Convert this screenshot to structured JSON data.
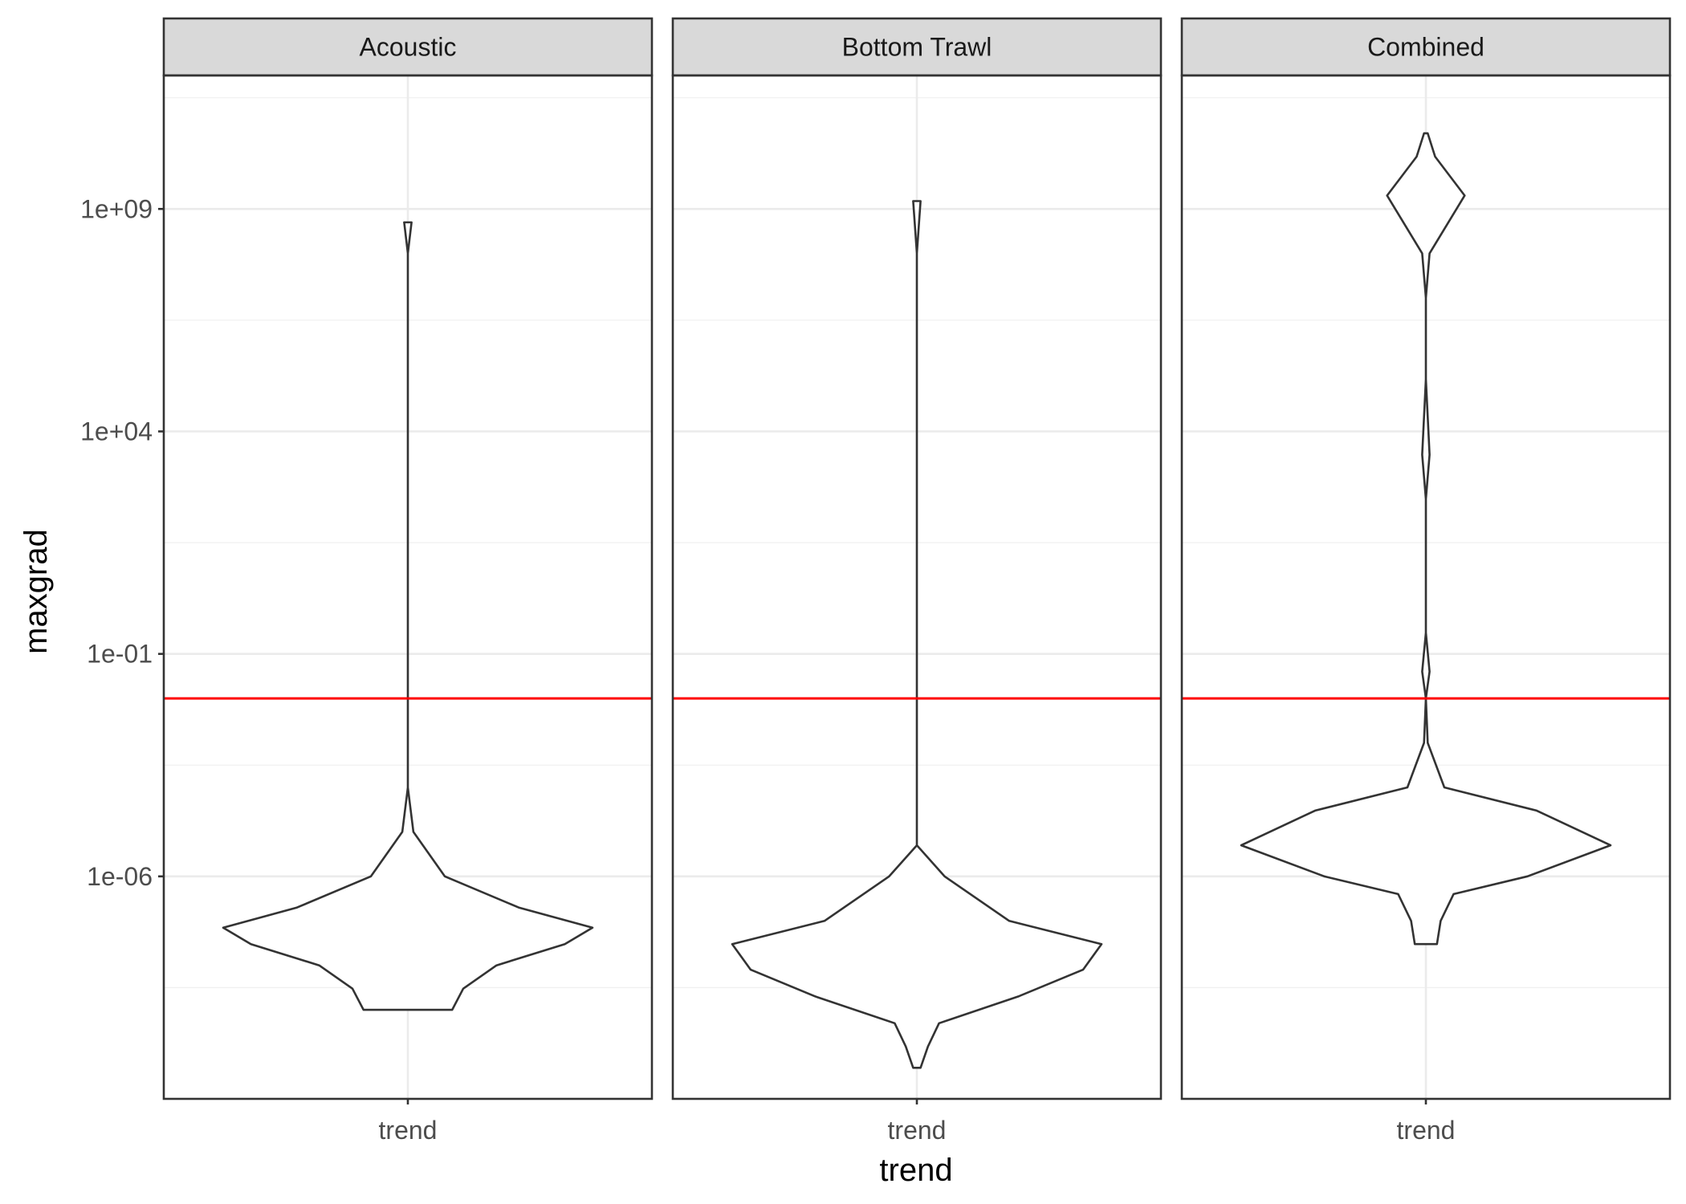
{
  "chart_data": {
    "type": "violin",
    "facets": [
      "Acoustic",
      "Bottom Trawl",
      "Combined"
    ],
    "xlabel": "trend",
    "ylabel": "maxgrad",
    "x_categories": [
      "trend"
    ],
    "y_scale": "log10",
    "y_range": [
      1e-11,
      1000000000000.0
    ],
    "y_ticks": [
      1e-06,
      0.1,
      10000.0,
      1000000000.0
    ],
    "y_tick_labels": [
      "1e-06",
      "1e-01",
      "1e+04",
      "1e+09"
    ],
    "reference_line": {
      "value": 0.01,
      "color": "#ff0000"
    },
    "grid": true,
    "theme": "bw",
    "series": [
      {
        "facet": "Acoustic",
        "x": "trend",
        "min": 1e-09,
        "max": 500000000.0,
        "profile": [
          [
            1e-09,
            0.24
          ],
          [
            3e-09,
            0.3
          ],
          [
            1e-08,
            0.48
          ],
          [
            3e-08,
            0.85
          ],
          [
            7e-08,
            1.0
          ],
          [
            2e-07,
            0.6
          ],
          [
            1e-06,
            0.2
          ],
          [
            1e-05,
            0.03
          ],
          [
            0.0001,
            0.0
          ],
          [
            0.01,
            0.0
          ],
          [
            1000000.0,
            0.0
          ],
          [
            100000000.0,
            0.0
          ],
          [
            500000000.0,
            0.02
          ]
        ]
      },
      {
        "facet": "Bottom Trawl",
        "x": "trend",
        "min": 5e-11,
        "max": 1500000000.0,
        "profile": [
          [
            5e-11,
            0.02
          ],
          [
            1.5e-10,
            0.06
          ],
          [
            5e-10,
            0.12
          ],
          [
            2e-09,
            0.55
          ],
          [
            8e-09,
            0.9
          ],
          [
            3e-08,
            1.0
          ],
          [
            1e-07,
            0.5
          ],
          [
            1e-06,
            0.15
          ],
          [
            5e-06,
            0.0
          ],
          [
            0.0001,
            0.0
          ],
          [
            10000.0,
            0.0
          ],
          [
            100000000.0,
            0.0
          ],
          [
            1500000000.0,
            0.02
          ]
        ]
      },
      {
        "facet": "Combined",
        "x": "trend",
        "min": 3e-08,
        "max": 50000000000.0,
        "profile": [
          [
            3e-08,
            0.06
          ],
          [
            1e-07,
            0.08
          ],
          [
            4e-07,
            0.15
          ],
          [
            1e-06,
            0.55
          ],
          [
            5e-06,
            1.0
          ],
          [
            3e-05,
            0.6
          ],
          [
            0.0001,
            0.1
          ],
          [
            0.001,
            0.01
          ],
          [
            0.01,
            0.0
          ],
          [
            0.04,
            0.02
          ],
          [
            0.3,
            0.0
          ],
          [
            300.0,
            0.0
          ],
          [
            3000.0,
            0.02
          ],
          [
            150000.0,
            0.0
          ],
          [
            10000000.0,
            0.0
          ],
          [
            100000000.0,
            0.02
          ],
          [
            2000000000.0,
            0.21
          ],
          [
            15000000000.0,
            0.05
          ],
          [
            50000000000.0,
            0.01
          ]
        ]
      }
    ]
  }
}
